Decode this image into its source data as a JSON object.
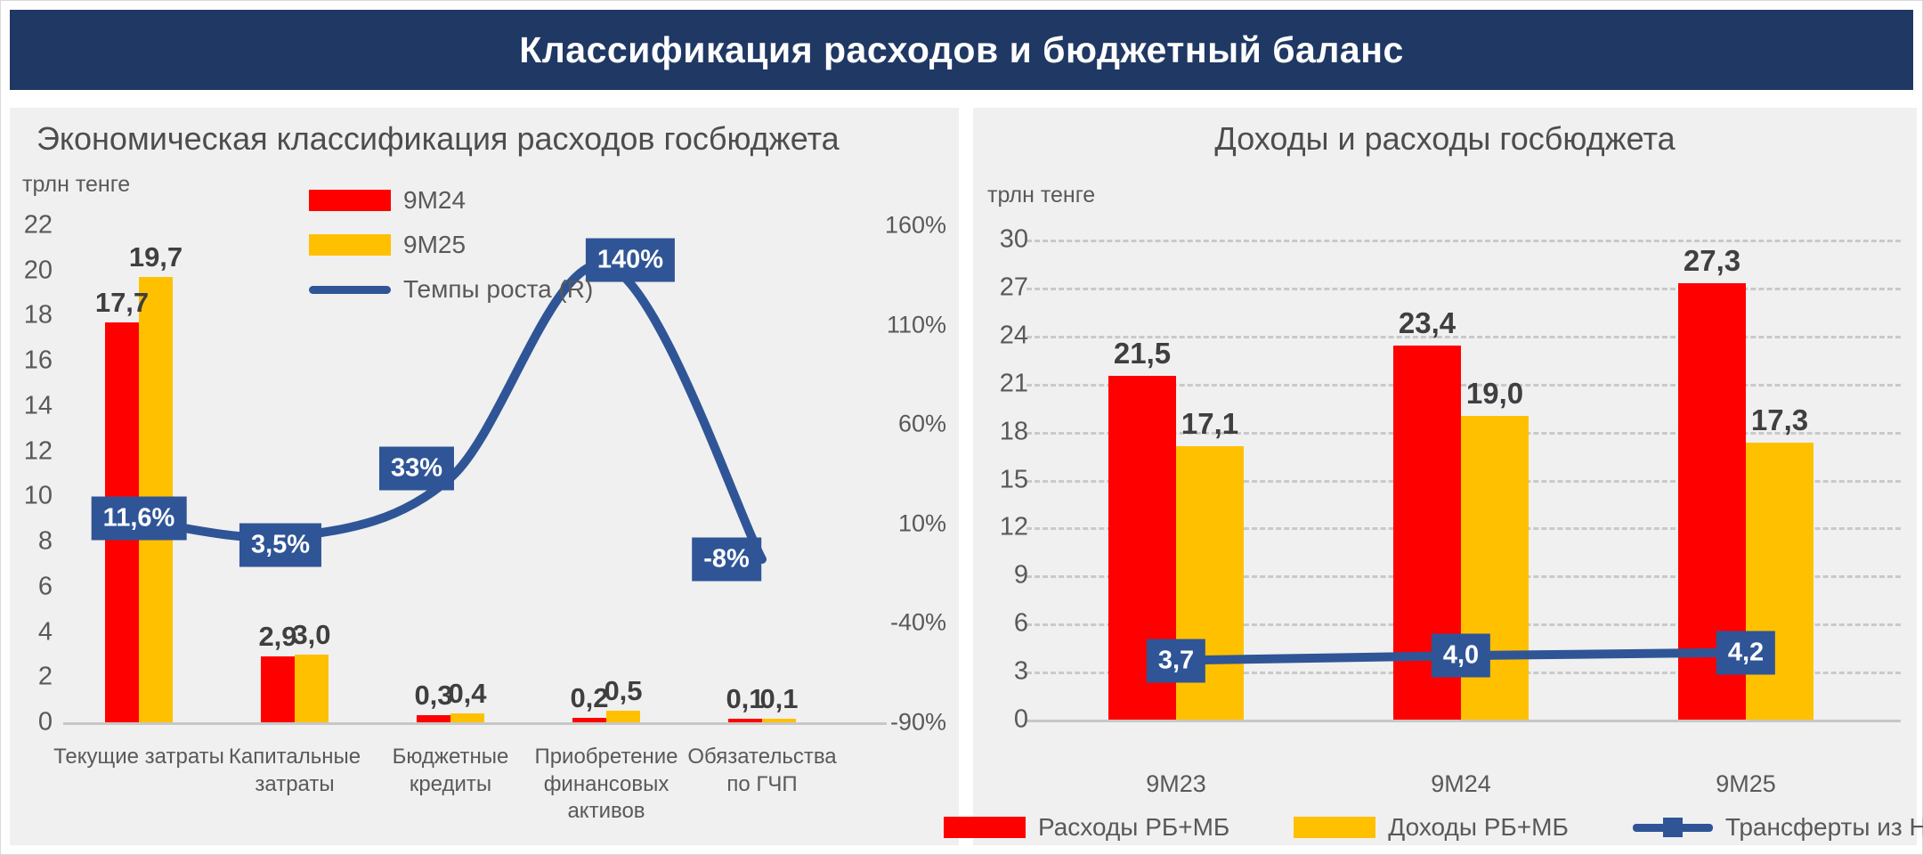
{
  "banner": {
    "title": "Классификация расходов и бюджетный баланс",
    "bg_color": "#1F3864"
  },
  "colors": {
    "red": "#FF0000",
    "yellow": "#FFC000",
    "blue": "#2F5597",
    "panel_bg": "#F0F0F0",
    "text": "#595959"
  },
  "chart_data": [
    {
      "type": "bar",
      "title": "Экономическая классификация расходов госбюджета",
      "unit_label": "трлн тенге",
      "categories": [
        "Текущие затраты",
        "Капитальные затраты",
        "Бюджетные кредиты",
        "Приобретение финансовых активов",
        "Обязательства по ГЧП"
      ],
      "series": [
        {
          "name": "9М24",
          "type": "bar",
          "color": "#FF0000",
          "values": [
            17.7,
            2.9,
            0.3,
            0.2,
            0.1
          ],
          "labels": [
            "17,7",
            "2,9",
            "0,3",
            "0,2",
            "0,1"
          ]
        },
        {
          "name": "9М25",
          "type": "bar",
          "color": "#FFC000",
          "values": [
            19.7,
            3.0,
            0.4,
            0.5,
            0.1
          ],
          "labels": [
            "19,7",
            "3,0",
            "0,4",
            "0,5",
            "0,1"
          ]
        },
        {
          "name": "Темпы роста (R)",
          "type": "line",
          "axis": "right",
          "color": "#2F5597",
          "values": [
            11.6,
            3.5,
            33,
            140,
            -8
          ],
          "labels": [
            "11,6%",
            "3,5%",
            "33%",
            "140%",
            "-8%"
          ]
        }
      ],
      "left_axis": {
        "ticks": [
          0,
          2,
          4,
          6,
          8,
          10,
          12,
          14,
          16,
          18,
          20,
          22
        ],
        "range": [
          0,
          22
        ]
      },
      "right_axis": {
        "ticks": [
          "160%",
          "110%",
          "60%",
          "10%",
          "-40%",
          "-90%"
        ],
        "values": [
          160,
          110,
          60,
          10,
          -40,
          -90
        ],
        "range": [
          -90,
          160
        ]
      },
      "legend_position": "top-center",
      "grid": false
    },
    {
      "type": "bar",
      "title": "Доходы и расходы госбюджета",
      "unit_label": "трлн тенге",
      "categories": [
        "9М23",
        "9М24",
        "9М25"
      ],
      "series": [
        {
          "name": "Расходы РБ+МБ",
          "type": "bar",
          "color": "#FF0000",
          "values": [
            21.5,
            23.4,
            27.3
          ],
          "labels": [
            "21,5",
            "23,4",
            "27,3"
          ]
        },
        {
          "name": "Доходы РБ+МБ",
          "type": "bar",
          "color": "#FFC000",
          "values": [
            17.1,
            19.0,
            17.3
          ],
          "labels": [
            "17,1",
            "19,0",
            "17,3"
          ]
        },
        {
          "name": "Трансферты из НФ",
          "type": "line",
          "axis": "left",
          "color": "#2F5597",
          "values": [
            3.7,
            4.0,
            4.2
          ],
          "labels": [
            "3,7",
            "4,0",
            "4,2"
          ]
        }
      ],
      "y_axis": {
        "ticks": [
          0,
          3,
          6,
          9,
          12,
          15,
          18,
          21,
          24,
          27,
          30
        ],
        "range": [
          0,
          30
        ]
      },
      "legend_position": "bottom-center",
      "grid": true
    }
  ]
}
